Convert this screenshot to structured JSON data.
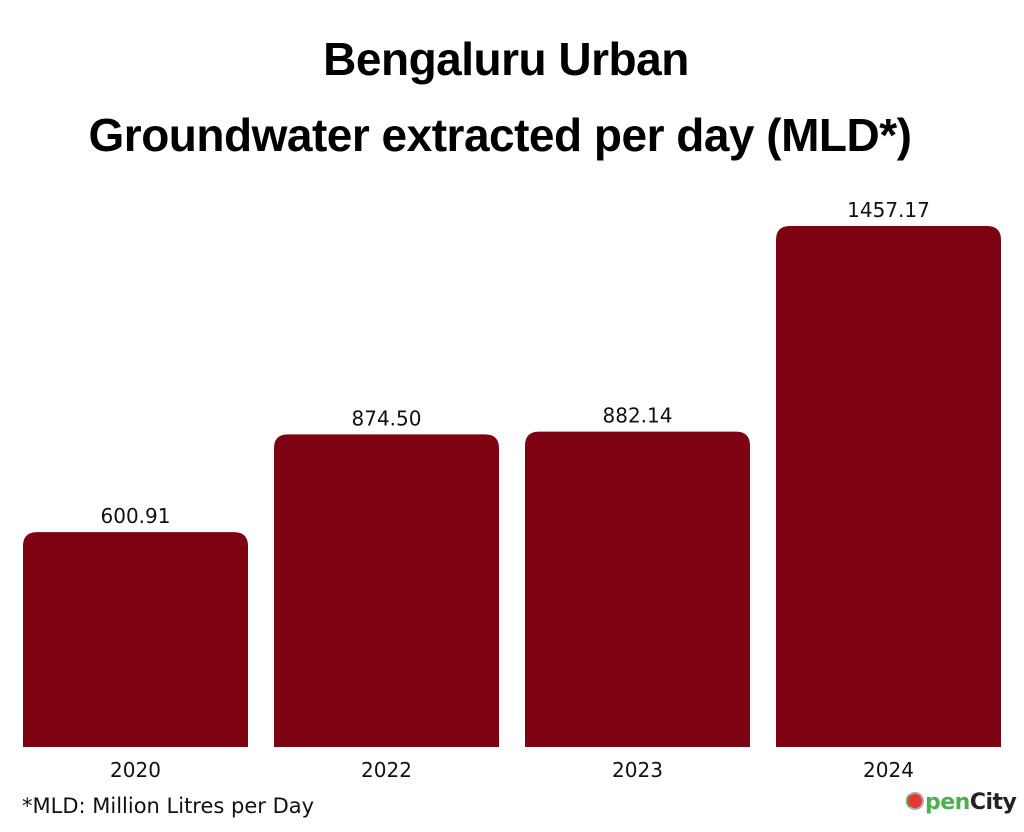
{
  "chart_data": {
    "type": "bar",
    "title": "Bengaluru Urban",
    "subtitle": "Groundwater extracted per day (MLD*)",
    "categories": [
      "2020",
      "2022",
      "2023",
      "2024"
    ],
    "values": [
      600.91,
      874.5,
      882.14,
      1457.17
    ],
    "value_labels": [
      "600.91",
      "874.50",
      "882.14",
      "1457.17"
    ],
    "xlabel": "",
    "ylabel": "",
    "ylim": [
      0,
      1457.17
    ],
    "grid": false,
    "legend": "none",
    "bar_color": "#7d0313"
  },
  "footnote": "*MLD: Million Litres per Day",
  "logo": {
    "first": "pen",
    "second": "City"
  }
}
